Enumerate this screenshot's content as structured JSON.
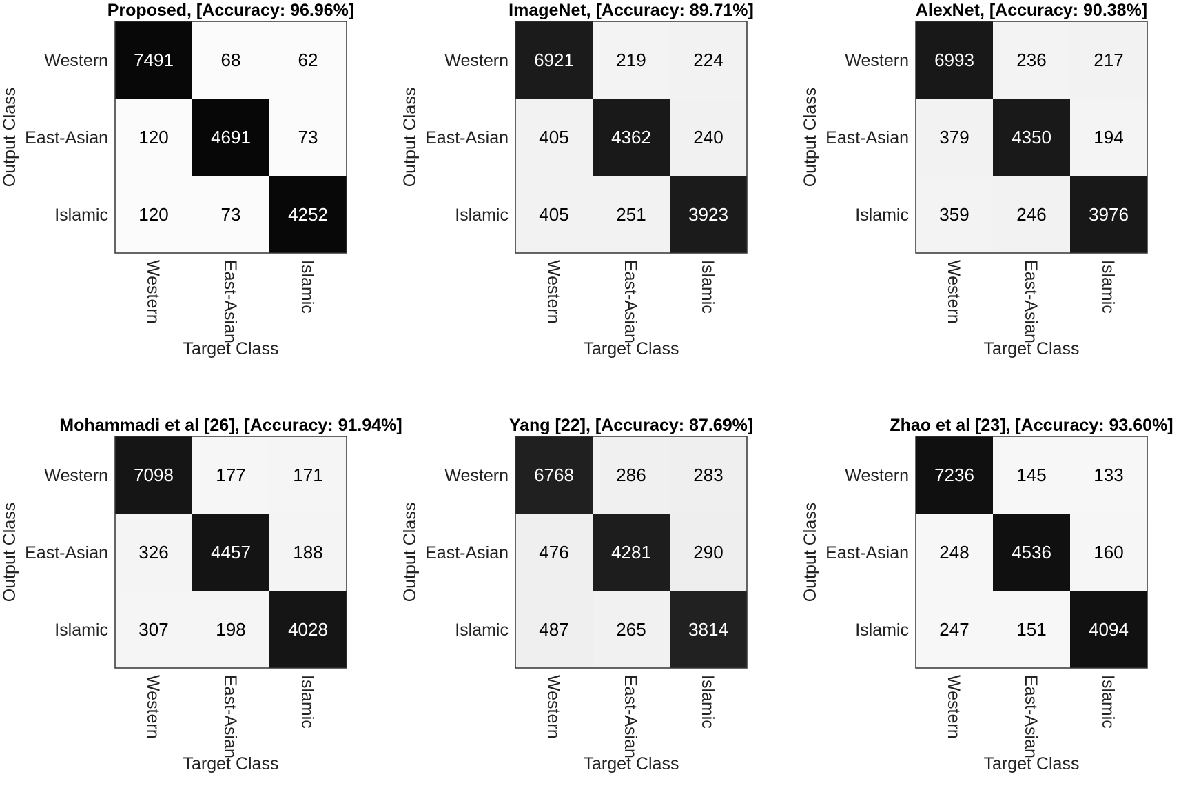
{
  "chart_data": [
    {
      "type": "heatmap",
      "title": "Proposed, [Accuracy: 96.96%]",
      "xlabel": "Target Class",
      "ylabel": "Output Class",
      "x_categories": [
        "Western",
        "East-Asian",
        "Islamic"
      ],
      "y_categories": [
        "Western",
        "East-Asian",
        "Islamic"
      ],
      "values": [
        [
          7491,
          68,
          62
        ],
        [
          120,
          4691,
          73
        ],
        [
          120,
          73,
          4252
        ]
      ],
      "colormap": "white-to-black"
    },
    {
      "type": "heatmap",
      "title": "ImageNet, [Accuracy: 89.71%]",
      "xlabel": "Target Class",
      "ylabel": "Output Class",
      "x_categories": [
        "Western",
        "East-Asian",
        "Islamic"
      ],
      "y_categories": [
        "Western",
        "East-Asian",
        "Islamic"
      ],
      "values": [
        [
          6921,
          219,
          224
        ],
        [
          405,
          4362,
          240
        ],
        [
          405,
          251,
          3923
        ]
      ],
      "colormap": "white-to-black"
    },
    {
      "type": "heatmap",
      "title": "AlexNet, [Accuracy: 90.38%]",
      "xlabel": "Target Class",
      "ylabel": "Output Class",
      "x_categories": [
        "Western",
        "East-Asian",
        "Islamic"
      ],
      "y_categories": [
        "Western",
        "East-Asian",
        "Islamic"
      ],
      "values": [
        [
          6993,
          236,
          217
        ],
        [
          379,
          4350,
          194
        ],
        [
          359,
          246,
          3976
        ]
      ],
      "colormap": "white-to-black"
    },
    {
      "type": "heatmap",
      "title": "Mohammadi et al [26], [Accuracy: 91.94%]",
      "xlabel": "Target Class",
      "ylabel": "Output Class",
      "x_categories": [
        "Western",
        "East-Asian",
        "Islamic"
      ],
      "y_categories": [
        "Western",
        "East-Asian",
        "Islamic"
      ],
      "values": [
        [
          7098,
          177,
          171
        ],
        [
          326,
          4457,
          188
        ],
        [
          307,
          198,
          4028
        ]
      ],
      "colormap": "white-to-black"
    },
    {
      "type": "heatmap",
      "title": "Yang [22], [Accuracy: 87.69%]",
      "xlabel": "Target Class",
      "ylabel": "Output Class",
      "x_categories": [
        "Western",
        "East-Asian",
        "Islamic"
      ],
      "y_categories": [
        "Western",
        "East-Asian",
        "Islamic"
      ],
      "values": [
        [
          6768,
          286,
          283
        ],
        [
          476,
          4281,
          290
        ],
        [
          487,
          265,
          3814
        ]
      ],
      "colormap": "white-to-black"
    },
    {
      "type": "heatmap",
      "title": "Zhao et al [23], [Accuracy: 93.60%]",
      "xlabel": "Target Class",
      "ylabel": "Output Class",
      "x_categories": [
        "Western",
        "East-Asian",
        "Islamic"
      ],
      "y_categories": [
        "Western",
        "East-Asian",
        "Islamic"
      ],
      "values": [
        [
          7236,
          145,
          133
        ],
        [
          248,
          4536,
          160
        ],
        [
          247,
          151,
          4094
        ]
      ],
      "colormap": "white-to-black"
    }
  ]
}
